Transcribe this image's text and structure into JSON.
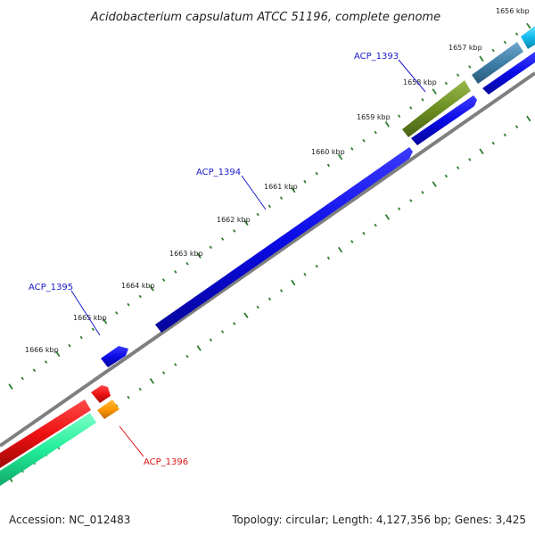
{
  "title": "Acidobacterium capsulatum ATCC 51196, complete genome",
  "footer": {
    "accession": "Accession: NC_012483",
    "summary": "Topology: circular; Length: 4,127,356 bp; Genes: 3,425"
  },
  "colors": {
    "backbone": "#7f7f7f",
    "tick": "#2e7d2e",
    "blue_gene": "#0a0ae6",
    "red_gene": "#ee1111",
    "green_gene": "#22ee99",
    "orange_gene": "#ff9900",
    "olive_gene": "#6b8e23",
    "steel_gene": "#3f7fa8",
    "cyan_gene": "#11bbee",
    "label_blue": "#1a1acc",
    "label_red": "#dd1111"
  },
  "ticks": [
    {
      "label": "1656 kbp"
    },
    {
      "label": "1657 kbp"
    },
    {
      "label": "1658 kbp"
    },
    {
      "label": "1659 kbp"
    },
    {
      "label": "1660 kbp"
    },
    {
      "label": "1661 kbp"
    },
    {
      "label": "1662 kbp"
    },
    {
      "label": "1663 kbp"
    },
    {
      "label": "1664 kbp"
    },
    {
      "label": "1665 kbp"
    },
    {
      "label": "1666 kbp"
    }
  ],
  "gene_labels": [
    {
      "name": "ACP_1393",
      "color": "#1a1acc"
    },
    {
      "name": "ACP_1394",
      "color": "#1a1acc"
    },
    {
      "name": "ACP_1395",
      "color": "#1a1acc"
    },
    {
      "name": "ACP_1396",
      "color": "#dd1111"
    }
  ]
}
